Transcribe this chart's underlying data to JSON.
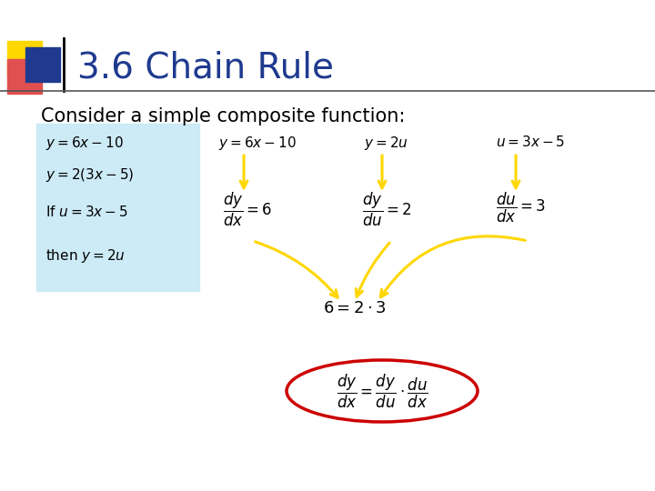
{
  "title": "3.6 Chain Rule",
  "title_color": "#1F3A8F",
  "title_fontsize": 28,
  "background_color": "#FFFFFF",
  "subtitle": "Consider a simple composite function:",
  "subtitle_fontsize": 15,
  "box_color": "#C5E8F5",
  "arrow_color": "#FFD700",
  "ellipse_color": "#CC0000",
  "header_line_color": "#555555",
  "sq_yellow": "#FFD700",
  "sq_red": "#E05050",
  "sq_blue": "#1F3A8F"
}
